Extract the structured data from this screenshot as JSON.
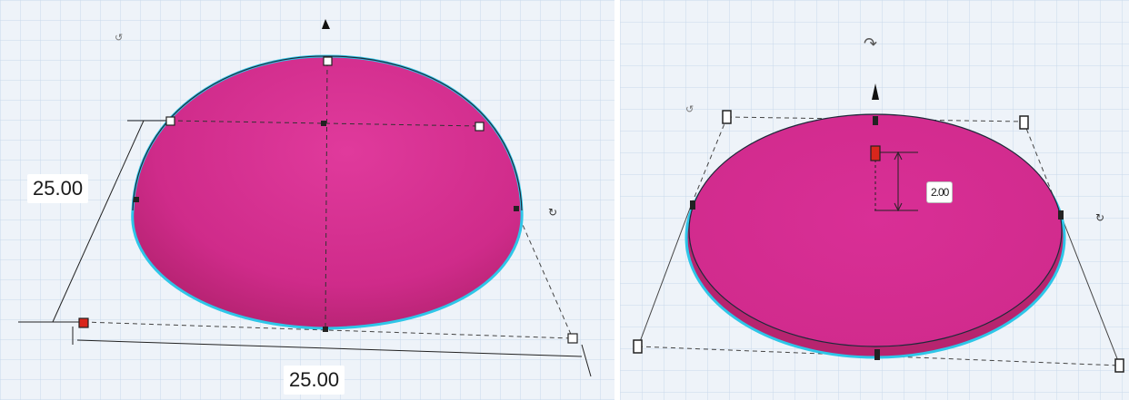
{
  "left_view": {
    "shape": "half-sphere",
    "width_dimension": "25.00",
    "depth_dimension": "25.00"
  },
  "right_view": {
    "shape": "flattened half-sphere",
    "height_dimension": "2.00"
  },
  "colors": {
    "shape_fill": "#d62a91",
    "selection_outline": "#2ec6e8",
    "grid_background": "#eef3f9",
    "grid_line": "#c8d8ea",
    "corner_handle_selected": "#d9261c"
  }
}
